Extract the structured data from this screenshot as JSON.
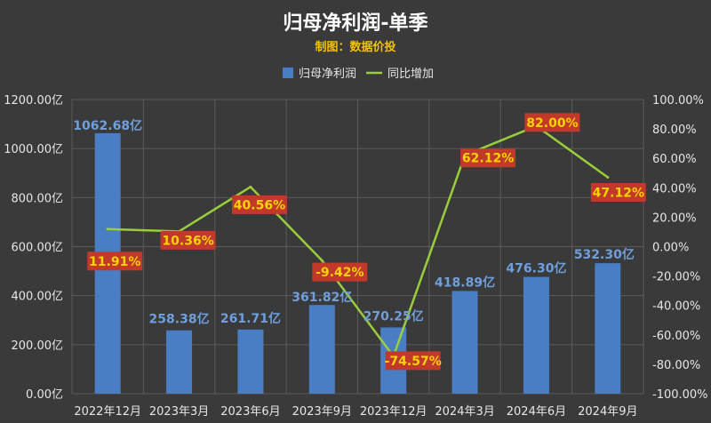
{
  "chart_data": {
    "type": "bar",
    "title": "归母净利润-单季",
    "subtitle": "制图：数据价投",
    "categories": [
      "2022年12月",
      "2023年3月",
      "2023年6月",
      "2023年9月",
      "2023年12月",
      "2024年3月",
      "2024年6月",
      "2024年9月"
    ],
    "series": [
      {
        "name": "归母净利润",
        "type": "bar",
        "axis": "left",
        "values": [
          1062.68,
          258.38,
          261.71,
          361.82,
          270.25,
          418.89,
          476.3,
          532.3
        ],
        "labels": [
          "1062.68亿",
          "258.38亿",
          "261.71亿",
          "361.82亿",
          "270.25亿",
          "418.89亿",
          "476.30亿",
          "532.30亿"
        ]
      },
      {
        "name": "同比增加",
        "type": "line",
        "axis": "right",
        "values": [
          11.91,
          10.36,
          40.56,
          -9.42,
          -74.57,
          62.12,
          82.0,
          47.12
        ],
        "labels": [
          "11.91%",
          "10.36%",
          "40.56%",
          "-9.42%",
          "-74.57%",
          "62.12%",
          "82.00%",
          "47.12%"
        ]
      }
    ],
    "y_left": {
      "range": [
        0,
        1200
      ],
      "ticks": [
        0,
        200,
        400,
        600,
        800,
        1000,
        1200
      ],
      "tick_labels": [
        "0.00亿",
        "200.00亿",
        "400.00亿",
        "600.00亿",
        "800.00亿",
        "1000.00亿",
        "1200.00亿"
      ]
    },
    "y_right": {
      "range": [
        -100,
        100
      ],
      "ticks": [
        -100,
        -80,
        -60,
        -40,
        -20,
        0,
        20,
        40,
        60,
        80,
        100
      ],
      "tick_labels": [
        "-100.00%",
        "-80.00%",
        "-60.00%",
        "-40.00%",
        "-20.00%",
        "0.00%",
        "20.00%",
        "40.00%",
        "60.00%",
        "80.00%",
        "100.00%"
      ]
    },
    "grid": true,
    "legend_position": "top",
    "colors": {
      "background": "#3a3a3a",
      "bar": "#4a7ec4",
      "line": "#9acd3c",
      "bar_label": "#6f9fdc",
      "pct_label_bg": "#c0392b",
      "pct_label_text": "#ffd200",
      "grid": "#5a5a5a",
      "subtitle": "#f2c200"
    }
  }
}
